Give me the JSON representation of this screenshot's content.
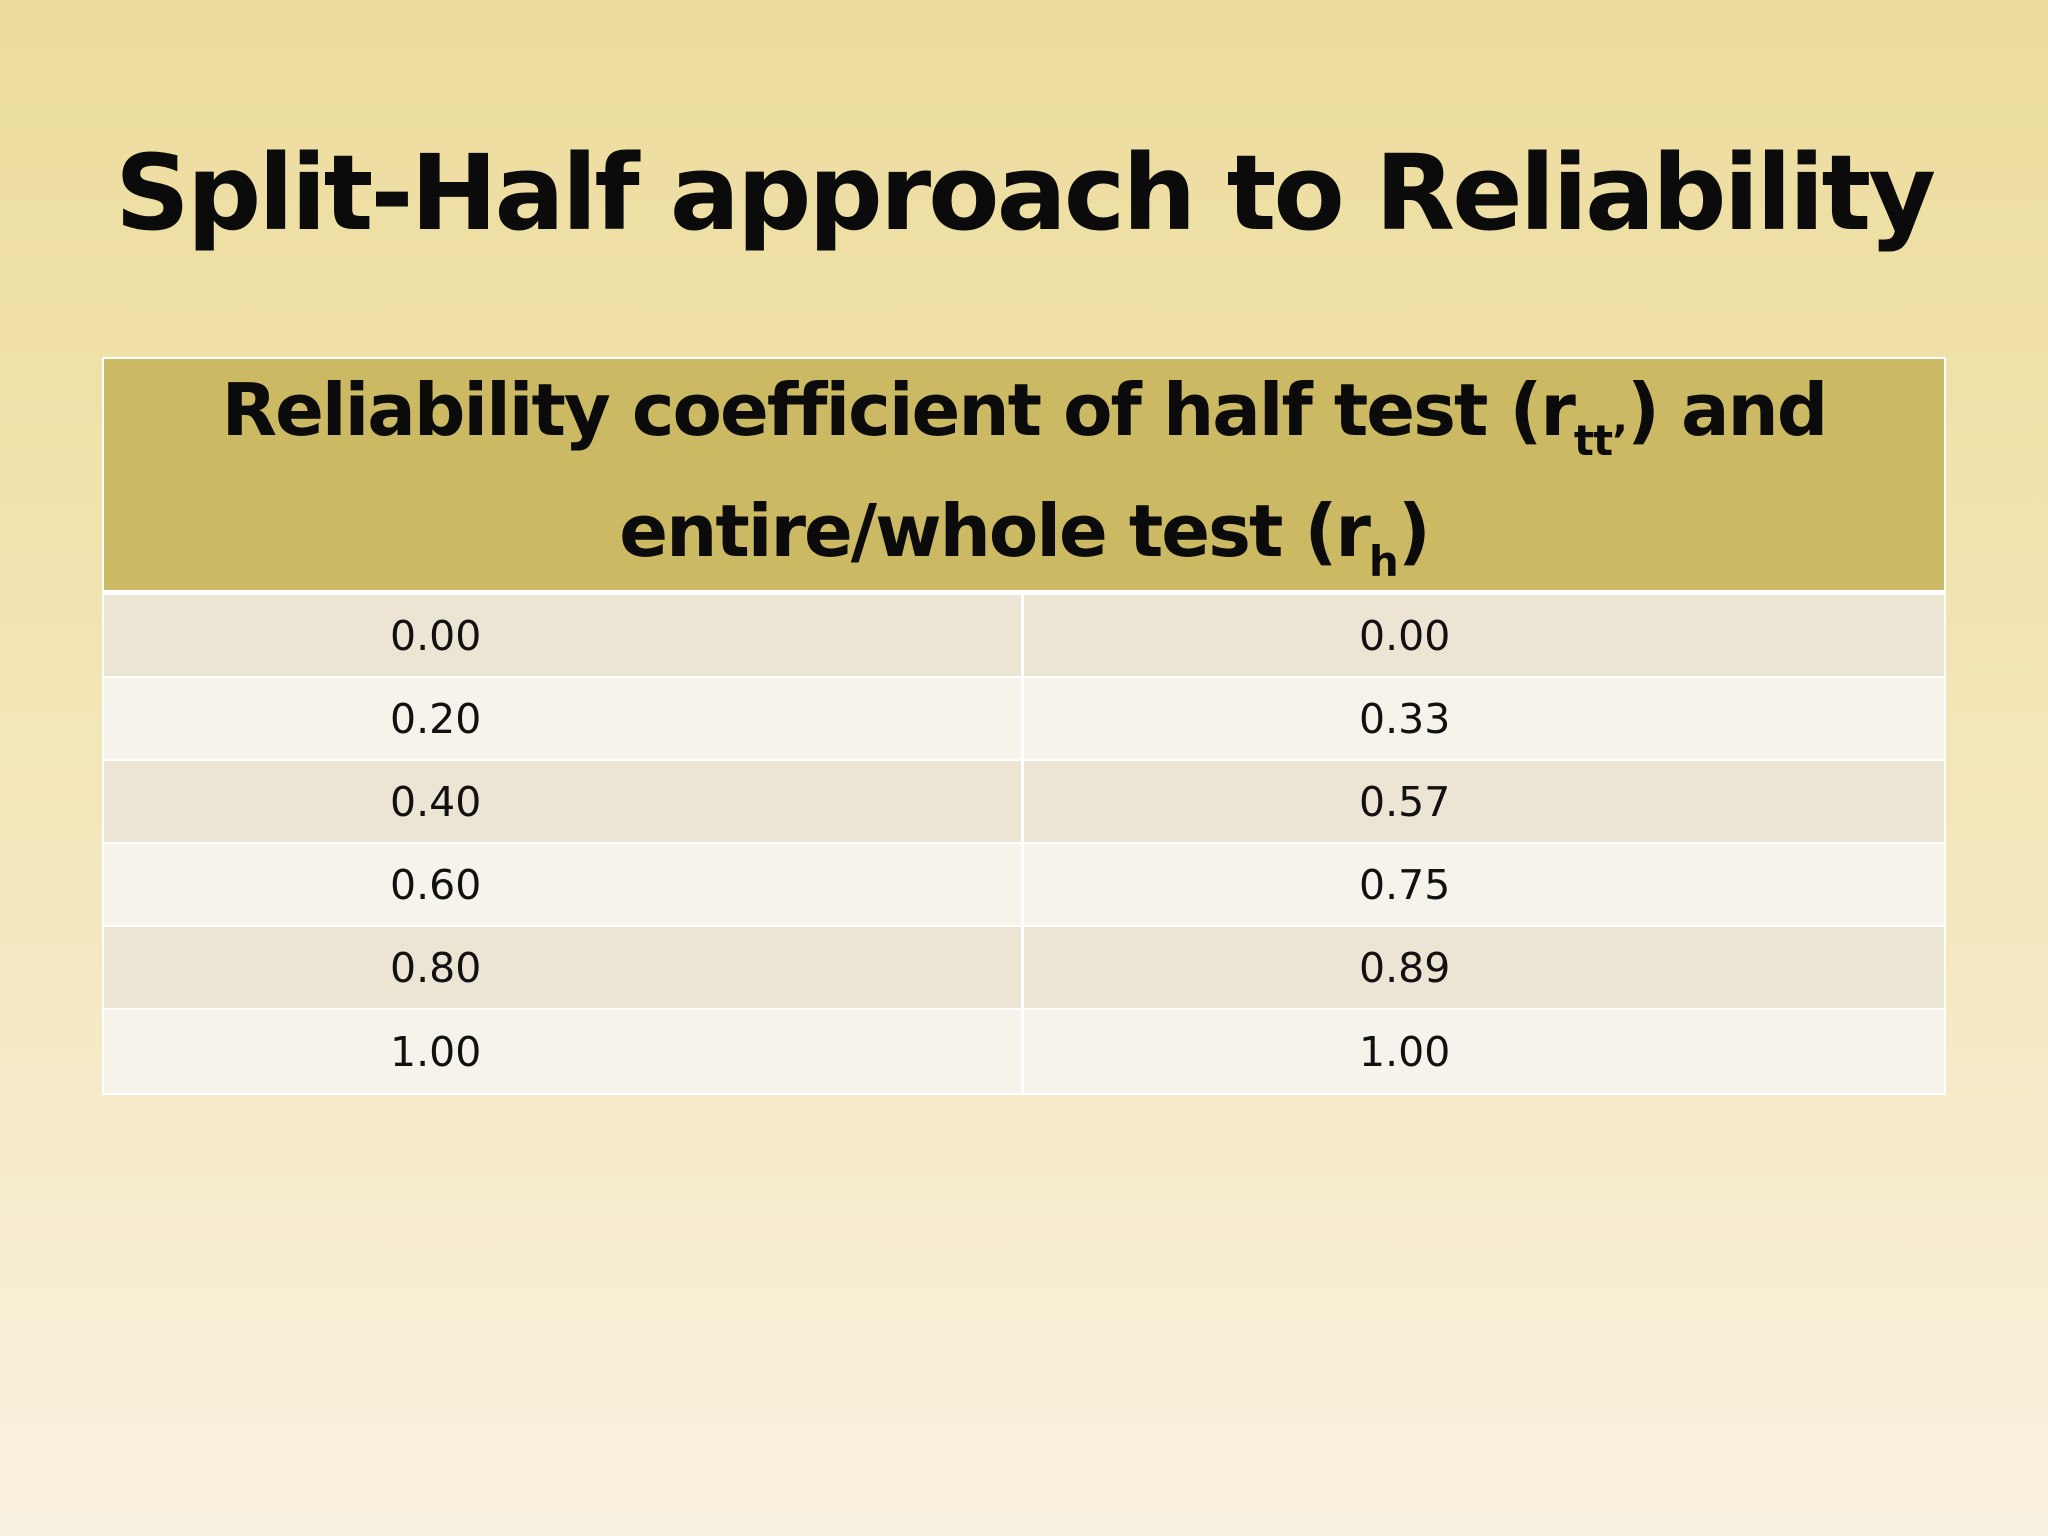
{
  "slide": {
    "title": "Split-Half approach to Reliability"
  },
  "table": {
    "header": {
      "line1_prefix": "Reliability coefficient of half test (r",
      "line1_sub": "tt’",
      "line1_suffix": ") and",
      "line2_prefix": "entire/whole test (r",
      "line2_sub": "h",
      "line2_suffix": ")"
    },
    "rows": [
      {
        "half": "0.00",
        "whole": "0.00"
      },
      {
        "half": "0.20",
        "whole": "0.33"
      },
      {
        "half": "0.40",
        "whole": "0.57"
      },
      {
        "half": "0.60",
        "whole": "0.75"
      },
      {
        "half": "0.80",
        "whole": "0.89"
      },
      {
        "half": "1.00",
        "whole": "1.00"
      }
    ]
  },
  "colors": {
    "header_fill": "#cbb964",
    "row_odd": "#ece5d4",
    "row_even": "#f6f3eb",
    "background_top": "#ecdc9e",
    "background_bottom": "#f9f1e0"
  }
}
